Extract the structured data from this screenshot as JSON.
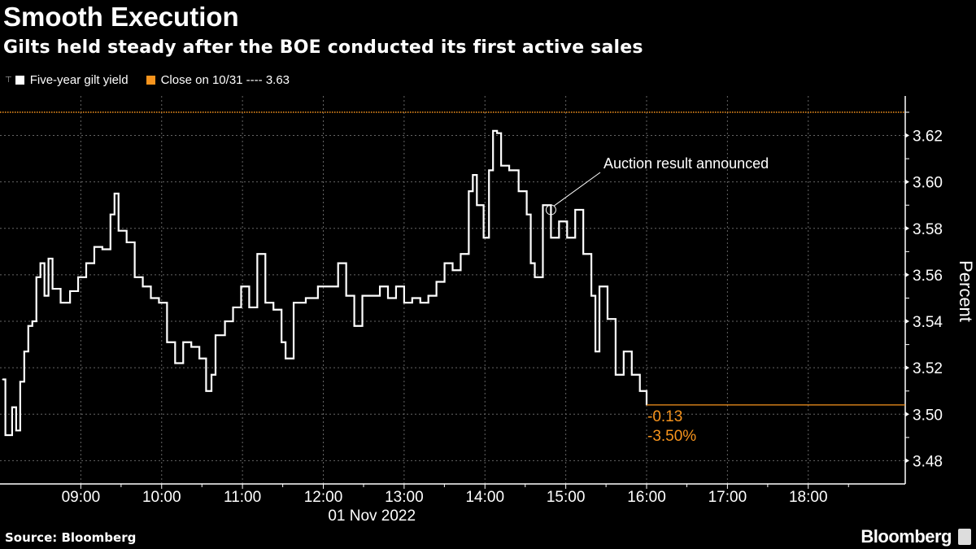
{
  "header": {
    "title": "Smooth Execution",
    "subtitle": "Gilts held steady after the BOE conducted its first active sales"
  },
  "footer": {
    "source": "Source: Bloomberg",
    "brand": "Bloomberg"
  },
  "colors": {
    "series": "#ffffff",
    "close": "#f7941d",
    "grid": "#666666"
  },
  "chart_data": {
    "type": "line",
    "title": "Smooth Execution",
    "subtitle": "Gilts held steady after the BOE conducted its first active sales",
    "xlabel": "01 Nov 2022",
    "ylabel": "Percent",
    "x_ticks": [
      "09:00",
      "10:00",
      "11:00",
      "12:00",
      "13:00",
      "14:00",
      "15:00",
      "16:00",
      "17:00",
      "18:00"
    ],
    "y_ticks": [
      3.48,
      3.5,
      3.52,
      3.54,
      3.56,
      3.58,
      3.6,
      3.62
    ],
    "y_tick_labels": [
      "3.48",
      "3.50",
      "3.52",
      "3.54",
      "3.56",
      "3.58",
      "3.60",
      "3.62"
    ],
    "xlim": [
      "08:00",
      "19:12"
    ],
    "ylim": [
      3.47,
      3.637
    ],
    "grid": true,
    "legend_position": "top-left",
    "legend": [
      {
        "label": "Five-year gilt yield",
        "color": "#ffffff"
      },
      {
        "label": "Close on 10/31 ---- 3.63",
        "color": "#f7941d"
      }
    ],
    "reference_line": {
      "label": "Close on 10/31",
      "value": 3.63,
      "style": "dotted",
      "color": "#f7941d"
    },
    "last_value_line": {
      "value": 3.504,
      "change": "-0.13",
      "change_pct": "-3.50%",
      "color": "#f7941d"
    },
    "annotation": {
      "text": "Auction result announced",
      "x": "14:49",
      "y": 3.588
    },
    "series": [
      {
        "name": "Five-year gilt yield",
        "x": [
          "08:02",
          "08:04",
          "08:09",
          "08:12",
          "08:15",
          "08:18",
          "08:21",
          "08:24",
          "08:27",
          "08:30",
          "08:33",
          "08:36",
          "08:39",
          "08:45",
          "08:52",
          "08:58",
          "09:04",
          "09:10",
          "09:16",
          "09:22",
          "09:25",
          "09:28",
          "09:34",
          "09:40",
          "09:46",
          "09:52",
          "09:58",
          "10:04",
          "10:10",
          "10:16",
          "10:22",
          "10:28",
          "10:33",
          "10:37",
          "10:40",
          "10:47",
          "10:53",
          "10:59",
          "11:05",
          "11:11",
          "11:17",
          "11:23",
          "11:29",
          "11:32",
          "11:38",
          "11:47",
          "11:56",
          "12:05",
          "12:11",
          "12:17",
          "12:23",
          "12:29",
          "12:36",
          "12:42",
          "12:48",
          "12:54",
          "13:00",
          "13:06",
          "13:12",
          "13:18",
          "13:24",
          "13:30",
          "13:36",
          "13:42",
          "13:48",
          "13:51",
          "13:54",
          "13:59",
          "14:03",
          "14:06",
          "14:09",
          "14:12",
          "14:18",
          "14:25",
          "14:31",
          "14:34",
          "14:37",
          "14:43",
          "14:49",
          "14:55",
          "15:01",
          "15:07",
          "15:13",
          "15:19",
          "15:22",
          "15:25",
          "15:31",
          "15:37",
          "15:43",
          "15:49",
          "15:55",
          "16:00"
        ],
        "values": [
          3.515,
          3.491,
          3.503,
          3.493,
          3.514,
          3.527,
          3.538,
          3.54,
          3.559,
          3.565,
          3.551,
          3.567,
          3.554,
          3.548,
          3.553,
          3.559,
          3.565,
          3.572,
          3.571,
          3.586,
          3.595,
          3.579,
          3.574,
          3.559,
          3.555,
          3.55,
          3.548,
          3.531,
          3.522,
          3.531,
          3.529,
          3.524,
          3.51,
          3.517,
          3.534,
          3.54,
          3.546,
          3.555,
          3.546,
          3.569,
          3.548,
          3.545,
          3.531,
          3.524,
          3.548,
          3.55,
          3.555,
          3.555,
          3.565,
          3.551,
          3.538,
          3.551,
          3.551,
          3.555,
          3.55,
          3.555,
          3.548,
          3.55,
          3.548,
          3.551,
          3.557,
          3.565,
          3.562,
          3.569,
          3.596,
          3.603,
          3.59,
          3.576,
          3.605,
          3.622,
          3.621,
          3.607,
          3.605,
          3.596,
          3.586,
          3.565,
          3.559,
          3.59,
          3.576,
          3.583,
          3.576,
          3.588,
          3.569,
          3.551,
          3.527,
          3.555,
          3.541,
          3.517,
          3.527,
          3.517,
          3.51,
          3.504
        ]
      }
    ]
  }
}
